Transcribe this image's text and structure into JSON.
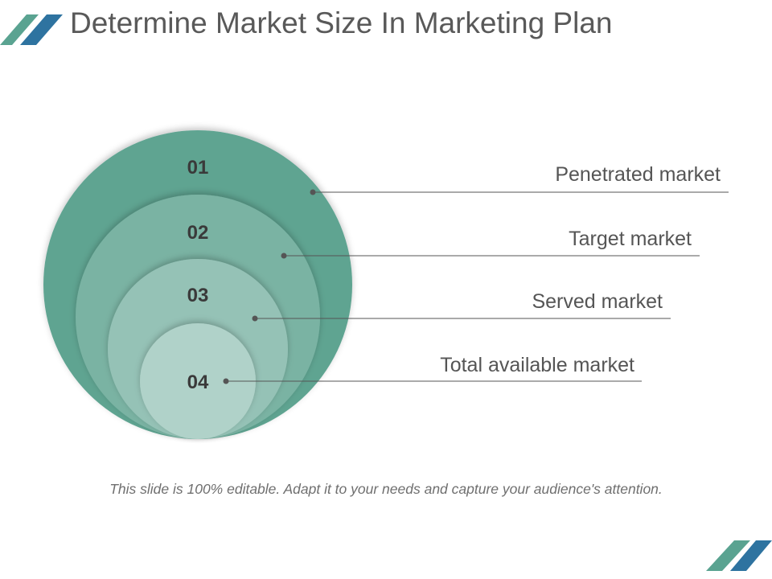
{
  "slide": {
    "title": "Determine Market Size In Marketing Plan",
    "footer": "This slide is 100% editable. Adapt it to your needs and capture your audience's attention."
  },
  "circles": [
    {
      "number": "01",
      "label": "Penetrated market",
      "color": "#5ea491"
    },
    {
      "number": "02",
      "label": "Target market",
      "color": "#7ab3a3"
    },
    {
      "number": "03",
      "label": "Served market",
      "color": "#95c2b6"
    },
    {
      "number": "04",
      "label": "Total available market",
      "color": "#b0d2c9"
    }
  ],
  "colors": {
    "accent_teal": "#5aa391",
    "accent_blue": "#2e73a0",
    "leader_line": "#555555",
    "title_text": "#595959"
  }
}
